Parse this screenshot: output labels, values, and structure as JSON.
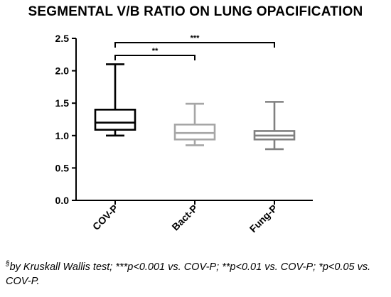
{
  "chart_data": {
    "type": "box",
    "title": "SEGMENTAL V/B RATIO ON LUNG OPACIFICATION",
    "categories": [
      "COV-P",
      "Bact-P",
      "Fung-P"
    ],
    "boxes": [
      {
        "category": "COV-P",
        "min": 1.0,
        "q1": 1.09,
        "median": 1.2,
        "q3": 1.4,
        "max": 2.1,
        "color": "#000000"
      },
      {
        "category": "Bact-P",
        "min": 0.85,
        "q1": 0.94,
        "median": 1.04,
        "q3": 1.17,
        "max": 1.49,
        "color": "#a6a6a6"
      },
      {
        "category": "Fung-P",
        "min": 0.79,
        "q1": 0.94,
        "median": 1.0,
        "q3": 1.07,
        "max": 1.52,
        "color": "#808080"
      }
    ],
    "ylim": [
      0,
      2.5
    ],
    "yticks": [
      "0.0",
      "0.5",
      "1.0",
      "1.5",
      "2.0",
      "2.5"
    ],
    "significance": [
      {
        "from": "COV-P",
        "to": "Fung-P",
        "label": "***"
      },
      {
        "from": "COV-P",
        "to": "Bact-P",
        "label": "**"
      }
    ],
    "xlabel": "",
    "ylabel": "",
    "grid": false
  },
  "footnote": {
    "superscript": "§",
    "text": "by Kruskall Wallis test; ***p<0.001 vs. COV-P; **p<0.01 vs. COV-P; *p<0.05 vs. COV-P."
  }
}
